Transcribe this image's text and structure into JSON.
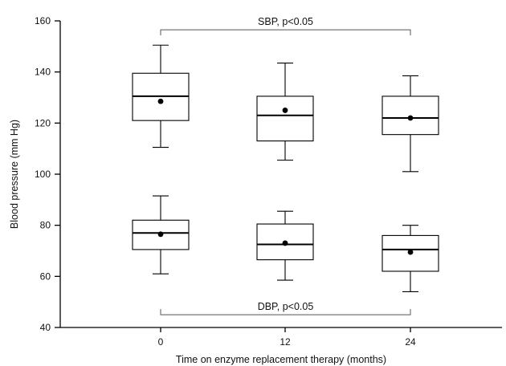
{
  "chart_data": {
    "type": "box",
    "title": "",
    "xlabel": "Time on enzyme replacement therapy (months)",
    "ylabel": "Blood pressure (mm Hg)",
    "ylim": [
      40,
      160
    ],
    "yticks": [
      40,
      60,
      80,
      100,
      120,
      140,
      160
    ],
    "categories": [
      "0",
      "12",
      "24"
    ],
    "grid": false,
    "series": [
      {
        "boxes": [
          {
            "min": 110.5,
            "q1": 121,
            "median": 130.5,
            "q3": 139.5,
            "max": 150.5,
            "mean": 128.5
          },
          {
            "min": 105.5,
            "q1": 113,
            "median": 123,
            "q3": 130.5,
            "max": 143.5,
            "mean": 125
          },
          {
            "min": 101,
            "q1": 115.5,
            "median": 122,
            "q3": 130.5,
            "max": 138.5,
            "mean": 122
          }
        ]
      },
      {
        "boxes": [
          {
            "min": 61,
            "q1": 70.5,
            "median": 77,
            "q3": 82,
            "max": 91.5,
            "mean": 76.5
          },
          {
            "min": 58.5,
            "q1": 66.5,
            "median": 72.5,
            "q3": 80.5,
            "max": 85.5,
            "mean": 73
          },
          {
            "min": 54,
            "q1": 62,
            "median": 70.5,
            "q3": 76,
            "max": 80,
            "mean": 69.5
          }
        ]
      }
    ],
    "annotations": [
      {
        "text": "SBP, p<0.05",
        "y": 156.5,
        "from": "0",
        "to": "24",
        "tick_direction": "down"
      },
      {
        "text": "DBP, p<0.05",
        "y": 45,
        "from": "0",
        "to": "24",
        "tick_direction": "up"
      }
    ]
  }
}
